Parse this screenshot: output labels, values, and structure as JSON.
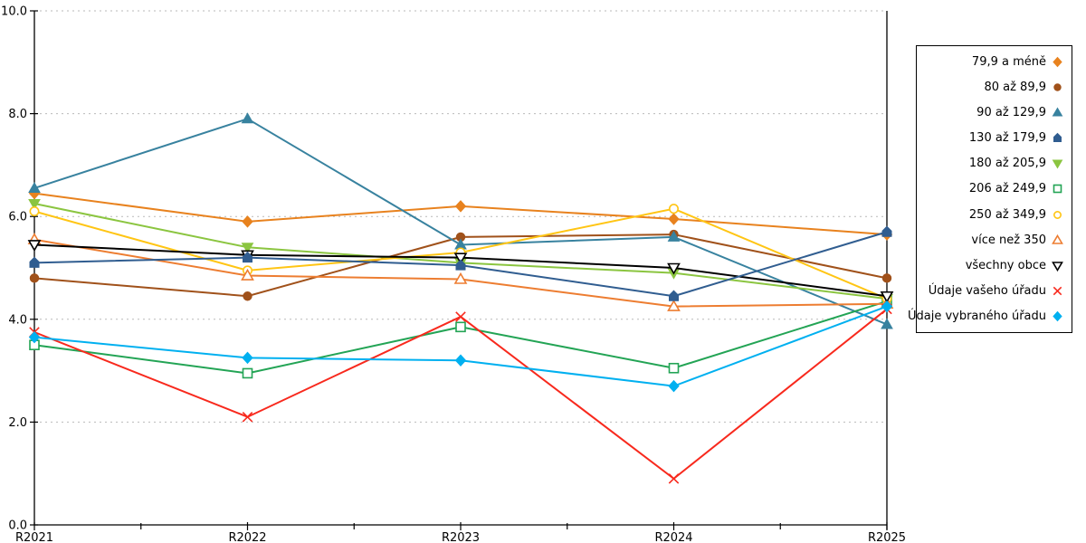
{
  "chart_data": {
    "type": "line",
    "title": "",
    "xlabel": "",
    "ylabel": "",
    "x_categories": [
      "R2021",
      "R2022",
      "R2023",
      "R2024",
      "R2025"
    ],
    "ylim": [
      0,
      10
    ],
    "y_tick_values": [
      0,
      2,
      4,
      6,
      8,
      10
    ],
    "y_tick_labels": [
      "0.0",
      "2.0",
      "4.0",
      "6.0",
      "8.0",
      "10.0"
    ],
    "grid": "horizontal dashed light-gray at 2,4,6,8,10",
    "legend_position": "right outside",
    "series": [
      {
        "name": "79,9 a méně",
        "color": "#E8821E",
        "marker": "diamond",
        "fill": "solid",
        "values": [
          6.45,
          5.9,
          6.2,
          5.95,
          5.65
        ]
      },
      {
        "name": "80 až 89,9",
        "color": "#A0511A",
        "marker": "circle",
        "fill": "solid",
        "values": [
          4.8,
          4.45,
          5.6,
          5.65,
          4.8
        ]
      },
      {
        "name": "90 až 129,9",
        "color": "#38829F",
        "marker": "triangle-up",
        "fill": "solid",
        "values": [
          6.55,
          7.9,
          5.45,
          5.6,
          3.9
        ]
      },
      {
        "name": "130 až 179,9",
        "color": "#305D90",
        "marker": "pentagon",
        "fill": "solid",
        "values": [
          5.1,
          5.2,
          5.05,
          4.45,
          5.7
        ]
      },
      {
        "name": "180 až 205,9",
        "color": "#8BC540",
        "marker": "triangle-down",
        "fill": "solid",
        "values": [
          6.25,
          5.4,
          5.1,
          4.9,
          4.4
        ]
      },
      {
        "name": "206 až 249,9",
        "color": "#23A455",
        "marker": "square",
        "fill": "open",
        "values": [
          3.5,
          2.95,
          3.85,
          3.05,
          4.35
        ]
      },
      {
        "name": "250 až 349,9",
        "color": "#FFC514",
        "marker": "circle",
        "fill": "open",
        "values": [
          6.1,
          4.95,
          5.3,
          6.15,
          4.4
        ]
      },
      {
        "name": "více než 350",
        "color": "#ED7D31",
        "marker": "triangle-up",
        "fill": "open",
        "values": [
          5.55,
          4.85,
          4.78,
          4.25,
          4.3
        ]
      },
      {
        "name": "všechny obce",
        "color": "#000000",
        "marker": "triangle-down",
        "fill": "open",
        "values": [
          5.45,
          5.25,
          5.2,
          5.0,
          4.45
        ]
      },
      {
        "name": "Údaje vašeho úřadu",
        "color": "#F8291D",
        "marker": "x",
        "fill": "open",
        "values": [
          3.75,
          2.1,
          4.05,
          0.9,
          4.2
        ]
      },
      {
        "name": "Údaje vybraného úřadu",
        "color": "#00B0F0",
        "marker": "diamond",
        "fill": "solid",
        "values": [
          3.65,
          3.25,
          3.2,
          2.7,
          4.25
        ]
      }
    ]
  }
}
